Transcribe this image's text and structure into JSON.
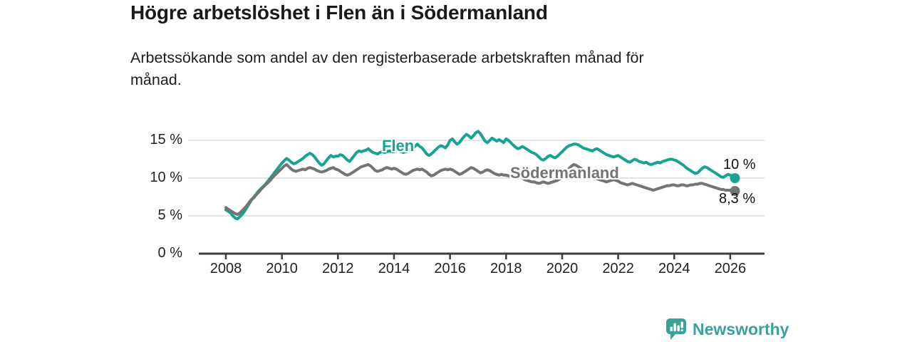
{
  "header": {
    "title": "Högre arbetslöshet i Flen än i Södermanland",
    "subtitle": "Arbetssökande som andel av den registerbaserade arbetskraften månad för\nmånad."
  },
  "footer": {
    "brand": "Newsworthy",
    "brand_color": "#3aa09b",
    "logo_icon": "bar-chart-speech-bubble-icon"
  },
  "chart_data": {
    "type": "line",
    "title": "Högre arbetslöshet i Flen än i Södermanland",
    "subtitle": "Arbetssökande som andel av den registerbaserade arbetskraften månad för månad.",
    "x_unit": "year (monthly observations)",
    "x_start": 2008.0,
    "x_step_months": 1,
    "xlim": [
      2007.0,
      2027.2
    ],
    "ylim": [
      0,
      17.5
    ],
    "grid": "horizontal-only",
    "legend_position": "inline-labels-on-lines",
    "x_ticks": [
      {
        "value": 2008,
        "label": "2008"
      },
      {
        "value": 2010,
        "label": "2010"
      },
      {
        "value": 2012,
        "label": "2012"
      },
      {
        "value": 2014,
        "label": "2014"
      },
      {
        "value": 2016,
        "label": "2016"
      },
      {
        "value": 2018,
        "label": "2018"
      },
      {
        "value": 2020,
        "label": "2020"
      },
      {
        "value": 2022,
        "label": "2022"
      },
      {
        "value": 2024,
        "label": "2024"
      },
      {
        "value": 2026,
        "label": "2026"
      }
    ],
    "y_ticks": [
      {
        "value": 15,
        "label": "15 %"
      },
      {
        "value": 10,
        "label": "10 %"
      },
      {
        "value": 5,
        "label": "5 %"
      },
      {
        "value": 0,
        "label": "0 %"
      }
    ],
    "style": {
      "grid_color": "#dcdcdc",
      "axis_color": "#3d3d3d",
      "line_width": 4
    },
    "series": [
      {
        "name": "Flen",
        "color": "#17a38f",
        "end_label": "10 %",
        "end_value": 10.0,
        "values": [
          5.8,
          5.6,
          5.4,
          5.0,
          4.7,
          4.6,
          4.9,
          5.2,
          5.6,
          6.1,
          6.6,
          7.1,
          7.5,
          7.9,
          8.3,
          8.6,
          8.9,
          9.2,
          9.6,
          10.0,
          10.4,
          10.8,
          11.2,
          11.6,
          12.0,
          12.3,
          12.6,
          12.4,
          12.1,
          11.9,
          12.0,
          12.2,
          12.4,
          12.6,
          12.9,
          13.1,
          13.3,
          13.1,
          12.8,
          12.4,
          12.0,
          11.7,
          11.9,
          12.3,
          12.7,
          13.0,
          12.8,
          12.9,
          12.9,
          13.1,
          13.0,
          12.7,
          12.4,
          12.2,
          12.6,
          13.0,
          13.4,
          13.6,
          13.5,
          13.6,
          13.7,
          13.9,
          13.6,
          13.4,
          13.3,
          13.2,
          13.4,
          13.5,
          13.4,
          13.5,
          13.6,
          13.5,
          13.5,
          13.6,
          13.7,
          13.5,
          13.4,
          13.5,
          13.6,
          13.8,
          14.0,
          14.2,
          14.5,
          14.2,
          14.0,
          13.6,
          13.2,
          13.0,
          13.2,
          13.5,
          13.8,
          14.1,
          14.3,
          14.2,
          14.0,
          14.4,
          15.0,
          15.2,
          14.8,
          14.5,
          14.7,
          15.1,
          15.5,
          15.8,
          15.6,
          15.3,
          15.6,
          16.0,
          16.2,
          15.9,
          15.4,
          14.9,
          14.7,
          15.0,
          15.3,
          15.1,
          14.9,
          15.1,
          14.9,
          14.7,
          15.2,
          15.0,
          14.7,
          14.4,
          14.1,
          13.9,
          14.0,
          14.2,
          14.0,
          13.8,
          13.6,
          13.4,
          13.3,
          13.1,
          12.8,
          12.5,
          12.4,
          12.6,
          12.9,
          13.0,
          12.8,
          12.7,
          12.9,
          13.2,
          13.5,
          13.8,
          14.1,
          14.3,
          14.4,
          14.5,
          14.5,
          14.4,
          14.2,
          14.0,
          13.9,
          13.8,
          13.7,
          13.6,
          13.8,
          13.9,
          13.7,
          13.5,
          13.3,
          13.1,
          13.0,
          12.9,
          12.8,
          12.9,
          13.0,
          12.8,
          12.6,
          12.4,
          12.2,
          12.1,
          12.3,
          12.5,
          12.4,
          12.2,
          12.1,
          12.0,
          12.1,
          11.9,
          11.8,
          11.9,
          12.0,
          12.1,
          12.0,
          12.2,
          12.3,
          12.4,
          12.5,
          12.5,
          12.4,
          12.3,
          12.1,
          11.9,
          11.7,
          11.4,
          11.2,
          11.0,
          10.8,
          10.6,
          10.7,
          11.0,
          11.3,
          11.5,
          11.4,
          11.2,
          11.0,
          10.8,
          10.6,
          10.4,
          10.2,
          10.1,
          10.3,
          10.5,
          10.4,
          10.2,
          10.0
        ]
      },
      {
        "name": "Södermanland",
        "color": "#747474",
        "end_label": "8,3 %",
        "end_value": 8.3,
        "values": [
          6.1,
          5.9,
          5.7,
          5.5,
          5.3,
          5.2,
          5.4,
          5.7,
          6.0,
          6.4,
          6.8,
          7.2,
          7.4,
          7.8,
          8.1,
          8.5,
          8.8,
          9.1,
          9.4,
          9.7,
          10.1,
          10.4,
          10.7,
          11.0,
          11.3,
          11.6,
          11.8,
          11.5,
          11.2,
          11.0,
          10.9,
          11.0,
          11.1,
          11.2,
          11.1,
          11.3,
          11.4,
          11.3,
          11.2,
          11.0,
          10.9,
          10.8,
          10.9,
          11.0,
          11.2,
          11.3,
          11.4,
          11.2,
          11.1,
          10.9,
          10.7,
          10.5,
          10.4,
          10.5,
          10.7,
          10.9,
          11.1,
          11.3,
          11.5,
          11.6,
          11.7,
          11.8,
          11.6,
          11.3,
          11.0,
          10.9,
          11.0,
          11.1,
          11.3,
          11.4,
          11.3,
          11.2,
          11.3,
          11.2,
          11.0,
          10.8,
          10.6,
          10.5,
          10.6,
          10.8,
          11.0,
          11.1,
          11.2,
          11.1,
          11.2,
          11.0,
          10.8,
          10.5,
          10.3,
          10.4,
          10.6,
          10.8,
          11.0,
          11.1,
          11.2,
          11.1,
          11.2,
          11.1,
          10.9,
          10.7,
          10.5,
          10.6,
          10.8,
          11.0,
          11.2,
          11.4,
          11.3,
          11.1,
          10.9,
          10.7,
          10.8,
          11.0,
          11.1,
          11.0,
          10.8,
          10.6,
          10.5,
          10.4,
          10.5,
          10.4,
          10.4,
          10.3,
          10.2,
          10.3,
          10.4,
          10.3,
          10.2,
          10.0,
          9.8,
          9.7,
          9.6,
          9.5,
          9.5,
          9.4,
          9.3,
          9.4,
          9.5,
          9.4,
          9.3,
          9.4,
          9.5,
          9.6,
          9.7,
          9.9,
          10.2,
          10.5,
          10.9,
          11.3,
          11.6,
          11.8,
          11.7,
          11.5,
          11.3,
          11.1,
          10.9,
          10.7,
          10.5,
          10.3,
          10.1,
          9.9,
          9.8,
          9.7,
          9.6,
          9.5,
          9.6,
          9.7,
          9.8,
          9.7,
          9.6,
          9.4,
          9.3,
          9.2,
          9.1,
          9.2,
          9.3,
          9.2,
          9.1,
          9.0,
          8.9,
          8.8,
          8.7,
          8.6,
          8.5,
          8.4,
          8.5,
          8.6,
          8.7,
          8.8,
          8.9,
          9.0,
          9.0,
          9.1,
          9.1,
          9.0,
          9.0,
          9.1,
          9.1,
          9.0,
          9.0,
          9.1,
          9.1,
          9.2,
          9.2,
          9.3,
          9.3,
          9.2,
          9.1,
          9.0,
          8.9,
          8.8,
          8.7,
          8.6,
          8.5,
          8.5,
          8.4,
          8.4,
          8.4,
          8.3,
          8.3
        ]
      }
    ]
  }
}
